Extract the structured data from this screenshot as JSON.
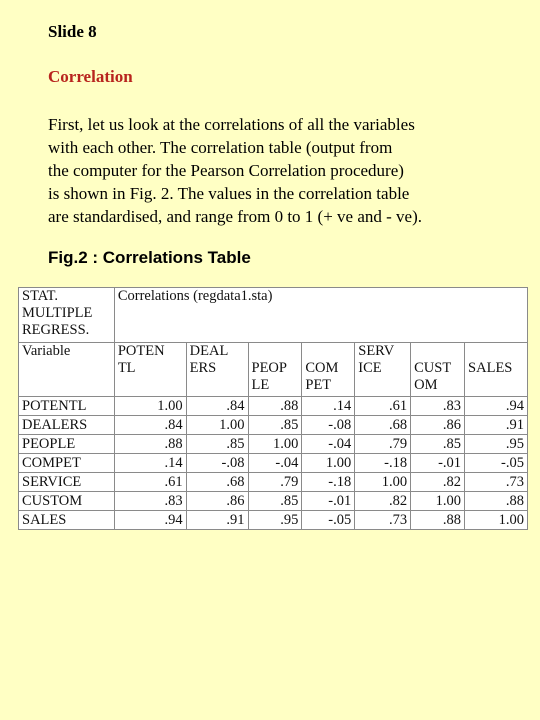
{
  "slide_number": "Slide 8",
  "section_title": "Correlation",
  "body_lines": [
    "First, let us look at the correlations of all the variables",
    "with each other. The correlation table (output from",
    "the computer for the Pearson Correlation  procedure)",
    "is shown in Fig. 2. The values in the correlation table",
    "are standardised, and range from 0 to 1 (+ ve and - ve)."
  ],
  "figure_caption": "Fig.2 : Correlations Table",
  "table": {
    "stat_label_lines": [
      "STAT.",
      "MULTIPLE",
      "REGRESS."
    ],
    "title": "Correlations (regdata1.sta)",
    "variable_header": "Variable",
    "column_headers": [
      [
        "POTEN",
        "TL"
      ],
      [
        "DEAL",
        "ERS"
      ],
      [
        "PEOP",
        "LE"
      ],
      [
        "COM",
        "PET"
      ],
      [
        "SERV",
        "ICE"
      ],
      [
        "CUST",
        "OM"
      ],
      [
        "SALES"
      ]
    ],
    "rows": [
      {
        "label": "POTENTL",
        "values": [
          "1.00",
          ".84",
          ".88",
          ".14",
          ".61",
          ".83",
          ".94"
        ]
      },
      {
        "label": "DEALERS",
        "values": [
          ".84",
          "1.00",
          ".85",
          "-.08",
          ".68",
          ".86",
          ".91"
        ]
      },
      {
        "label": "PEOPLE",
        "values": [
          ".88",
          ".85",
          "1.00",
          "-.04",
          ".79",
          ".85",
          ".95"
        ]
      },
      {
        "label": "COMPET",
        "values": [
          ".14",
          "-.08",
          "-.04",
          "1.00",
          "-.18",
          "-.01",
          "-.05"
        ]
      },
      {
        "label": "SERVICE",
        "values": [
          ".61",
          ".68",
          ".79",
          "-.18",
          "1.00",
          ".82",
          ".73"
        ]
      },
      {
        "label": "CUSTOM",
        "values": [
          ".83",
          ".86",
          ".85",
          "-.01",
          ".82",
          "1.00",
          ".88"
        ]
      },
      {
        "label": "SALES",
        "values": [
          ".94",
          ".91",
          ".95",
          "-.05",
          ".73",
          ".88",
          "1.00"
        ]
      }
    ]
  }
}
